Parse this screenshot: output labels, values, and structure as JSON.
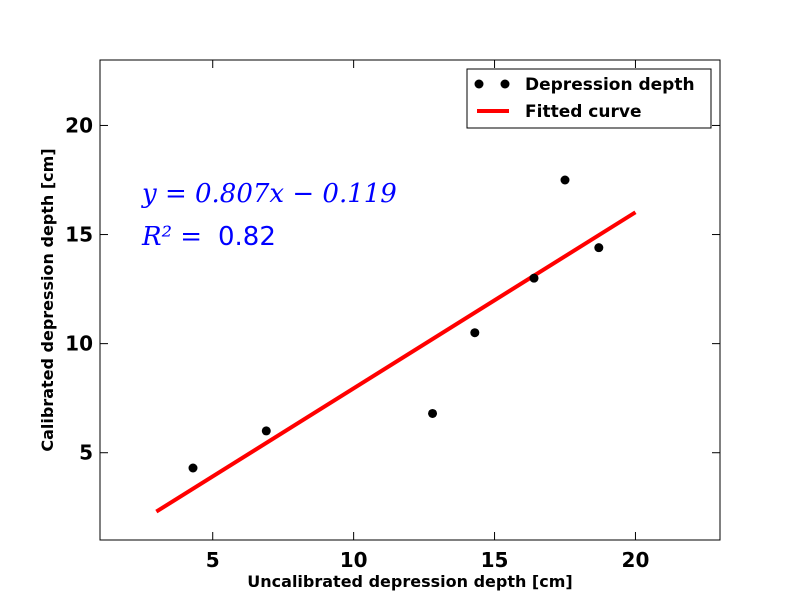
{
  "chart_data": {
    "type": "scatter",
    "title": "",
    "xlabel": "Uncalibrated depression depth [cm]",
    "ylabel": "Calibrated depression depth [cm]",
    "xlim": [
      1,
      23
    ],
    "ylim": [
      1,
      23
    ],
    "xticks": [
      5,
      10,
      15,
      20
    ],
    "yticks": [
      5,
      10,
      15,
      20
    ],
    "grid": false,
    "legend_position": "top-right",
    "series": [
      {
        "name": "Depression depth",
        "kind": "scatter",
        "color": "#000000",
        "x": [
          4.3,
          6.9,
          12.8,
          14.3,
          16.4,
          17.5,
          18.7
        ],
        "y": [
          4.3,
          6.0,
          6.8,
          10.5,
          13.0,
          17.5,
          14.4
        ]
      },
      {
        "name": "Fitted curve",
        "kind": "line",
        "color": "#ff0000",
        "x": [
          3,
          20
        ],
        "y": [
          2.302,
          16.021
        ]
      }
    ],
    "annotations": {
      "equation": "y = 0.807x − 0.119",
      "r2_label": "R² =",
      "r2_value": "0.82",
      "color": "#0000ff"
    }
  }
}
